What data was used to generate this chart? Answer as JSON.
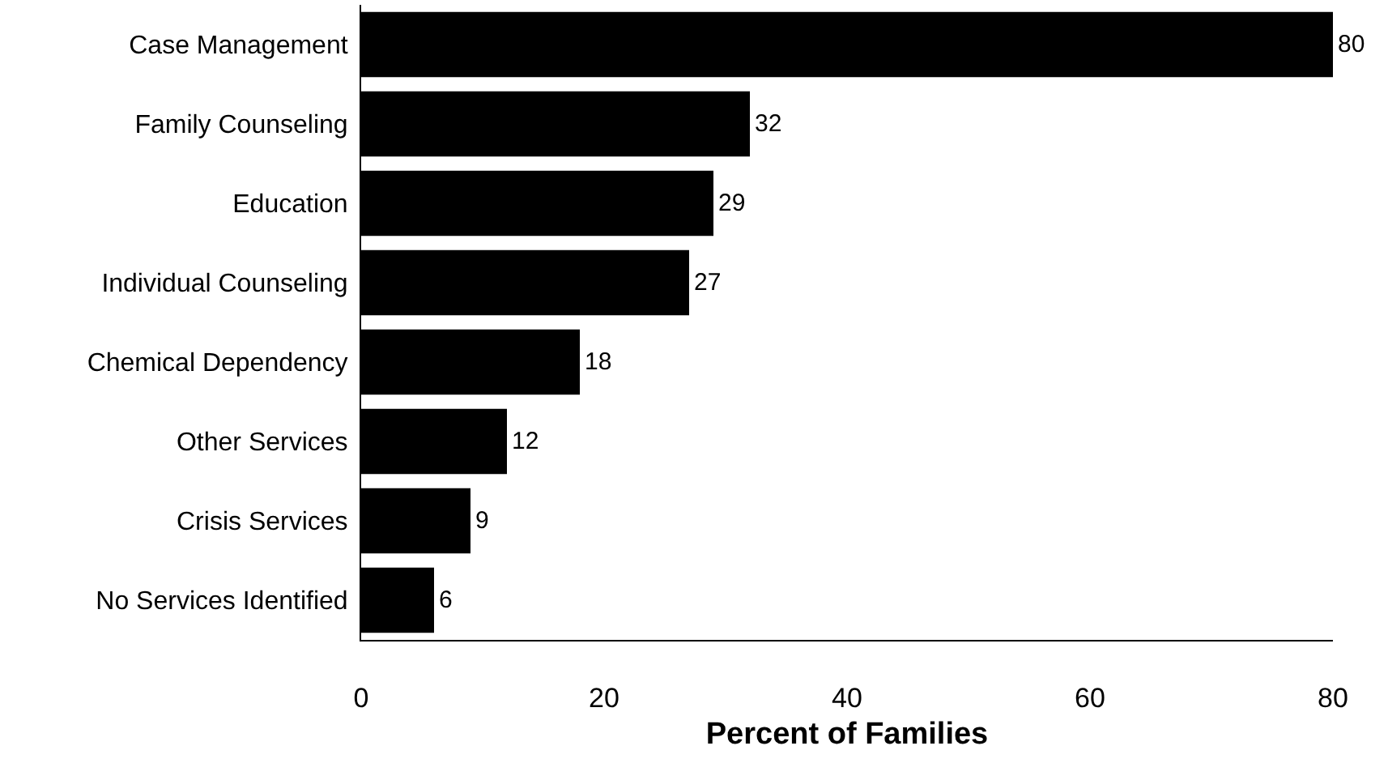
{
  "chart_data": {
    "type": "bar",
    "orientation": "horizontal",
    "xlabel": "Percent of Families",
    "categories": [
      "Case Management",
      "Family Counseling",
      "Education",
      "Individual Counseling",
      "Chemical Dependency",
      "Other Services",
      "Crisis Services",
      "No Services Identified"
    ],
    "values": [
      80,
      32,
      29,
      27,
      18,
      12,
      9,
      6
    ],
    "color": "#000000",
    "xlim": [
      0,
      80
    ],
    "xticks": [
      0,
      20,
      40,
      60,
      80
    ],
    "data_labels": true
  }
}
